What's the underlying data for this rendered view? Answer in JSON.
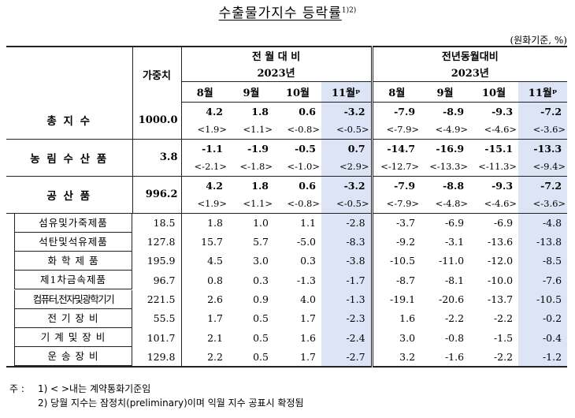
{
  "title": "수출물가지수 등락률",
  "title_sup": "1)2)",
  "unit": "(원화기준, %)",
  "header": {
    "weight": "가중치",
    "mom": "전 월 대 비",
    "yoy": "전년동월대비",
    "year": "2023년",
    "months": [
      "8월",
      "9월",
      "10월",
      "11월ᵖ",
      "8월",
      "9월",
      "10월",
      "11월ᵖ"
    ]
  },
  "groups": [
    {
      "name": "총 지 수",
      "weight": "1000.0",
      "values": [
        "4.2",
        "1.8",
        "0.6",
        "-3.2",
        "-7.9",
        "-8.9",
        "-9.3",
        "-7.2"
      ],
      "contract": [
        "<1.9>",
        "<1.1>",
        "<-0.8>",
        "<-0.5>",
        "<-7.9>",
        "<-4.9>",
        "<-4.6>",
        "<-3.6>"
      ]
    },
    {
      "name": "농 림 수 산 품",
      "weight": "3.8",
      "values": [
        "-1.1",
        "-1.9",
        "-0.5",
        "0.7",
        "-14.7",
        "-16.9",
        "-15.1",
        "-13.3"
      ],
      "contract": [
        "<-2.1>",
        "<-1.8>",
        "<-1.0>",
        "<2.9>",
        "<-12.7>",
        "<-13.3>",
        "<-11.3>",
        "<-9.4>"
      ]
    },
    {
      "name": "공 산 품",
      "weight": "996.2",
      "values": [
        "4.2",
        "1.8",
        "0.6",
        "-3.2",
        "-7.9",
        "-8.8",
        "-9.3",
        "-7.2"
      ],
      "contract": [
        "<1.9>",
        "<1.1>",
        "<-0.8>",
        "<-0.5>",
        "<-7.9>",
        "<-4.8>",
        "<-4.6>",
        "<-3.6>"
      ]
    }
  ],
  "subitems": [
    {
      "name": "섬유및가죽제품",
      "weight": "18.5",
      "values": [
        "1.8",
        "1.0",
        "1.1",
        "-2.8",
        "-3.7",
        "-6.9",
        "-6.9",
        "-4.8"
      ]
    },
    {
      "name": "석탄및석유제품",
      "weight": "127.8",
      "values": [
        "15.7",
        "5.7",
        "-5.0",
        "-8.3",
        "-9.2",
        "-3.1",
        "-13.6",
        "-13.8"
      ]
    },
    {
      "name": "화 학 제 품",
      "weight": "195.9",
      "values": [
        "4.5",
        "3.0",
        "0.3",
        "-3.8",
        "-10.5",
        "-11.0",
        "-12.0",
        "-8.5"
      ]
    },
    {
      "name": "제1차금속제품",
      "weight": "96.7",
      "values": [
        "0.8",
        "0.3",
        "-1.3",
        "-1.7",
        "-8.7",
        "-8.1",
        "-10.0",
        "-7.6"
      ]
    },
    {
      "name": "컴퓨터,전자및광학기기",
      "weight": "221.5",
      "values": [
        "2.6",
        "0.9",
        "4.0",
        "-1.3",
        "-19.1",
        "-20.6",
        "-13.7",
        "-10.5"
      ]
    },
    {
      "name": "전 기 장 비",
      "weight": "55.5",
      "values": [
        "1.7",
        "0.5",
        "1.7",
        "-2.3",
        "1.6",
        "-2.2",
        "-2.2",
        "-0.2"
      ]
    },
    {
      "name": "기 계 및 장 비",
      "weight": "101.7",
      "values": [
        "2.1",
        "0.5",
        "1.6",
        "-2.4",
        "3.0",
        "-0.8",
        "-1.5",
        "-0.4"
      ]
    },
    {
      "name": "운 송 장 비",
      "weight": "129.8",
      "values": [
        "2.2",
        "0.5",
        "1.7",
        "-2.7",
        "3.2",
        "-1.6",
        "-2.2",
        "-1.2"
      ]
    }
  ],
  "notes": [
    {
      "label": "주 :",
      "text": "1) < >내는 계약통화기준임"
    },
    {
      "label": "",
      "text": "2) 당월 지수는 잠정치(preliminary)이며 익월 지수 공표시 확정됨"
    }
  ],
  "colors": {
    "highlight": "#dde4f6",
    "line": "#222222"
  }
}
